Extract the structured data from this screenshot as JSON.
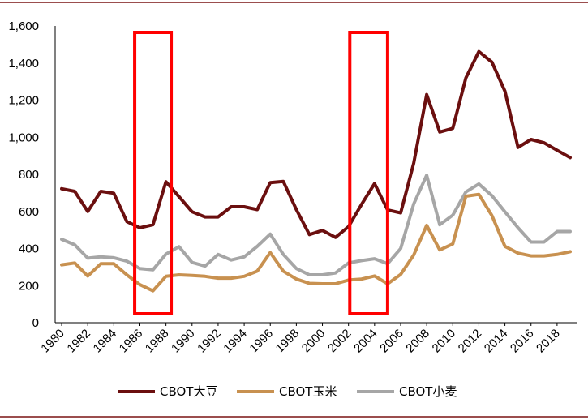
{
  "chart_data": {
    "type": "line",
    "title": "",
    "xlabel": "",
    "ylabel": "",
    "x": [
      1980,
      1981,
      1982,
      1983,
      1984,
      1985,
      1986,
      1987,
      1988,
      1989,
      1990,
      1991,
      1992,
      1993,
      1994,
      1995,
      1996,
      1997,
      1998,
      1999,
      2000,
      2001,
      2002,
      2003,
      2004,
      2005,
      2006,
      2007,
      2008,
      2009,
      2010,
      2011,
      2012,
      2013,
      2014,
      2015,
      2016,
      2017,
      2018,
      2019
    ],
    "x_tick_labels": [
      "1980",
      "1982",
      "1984",
      "1986",
      "1988",
      "1990",
      "1992",
      "1994",
      "1996",
      "1998",
      "2000",
      "2002",
      "2004",
      "2006",
      "2008",
      "2010",
      "2012",
      "2014",
      "2016",
      "2018"
    ],
    "y_tick_labels": [
      "0",
      "200",
      "400",
      "600",
      "800",
      "1,000",
      "1,200",
      "1,400",
      "1,600"
    ],
    "ylim": [
      0,
      1600
    ],
    "grid": false,
    "legend_position": "bottom",
    "series": [
      {
        "name": "CBOT大豆",
        "color": "#6b0f0f",
        "values": [
          722,
          708,
          600,
          708,
          698,
          545,
          512,
          528,
          760,
          680,
          598,
          570,
          570,
          625,
          625,
          610,
          755,
          762,
          610,
          475,
          498,
          460,
          518,
          638,
          750,
          608,
          592,
          860,
          1230,
          1028,
          1048,
          1320,
          1462,
          1405,
          1248,
          945,
          988,
          970,
          930,
          890
        ]
      },
      {
        "name": "CBOT玉米",
        "color": "#c89150",
        "values": [
          312,
          322,
          252,
          318,
          318,
          258,
          205,
          172,
          250,
          258,
          255,
          250,
          240,
          240,
          250,
          278,
          378,
          278,
          235,
          212,
          210,
          210,
          230,
          235,
          252,
          210,
          260,
          365,
          525,
          392,
          425,
          682,
          692,
          578,
          412,
          375,
          360,
          360,
          368,
          383
        ]
      },
      {
        "name": "CBOT小麦",
        "color": "#a6a6a6",
        "values": [
          450,
          420,
          348,
          355,
          350,
          332,
          292,
          285,
          370,
          410,
          325,
          305,
          368,
          338,
          355,
          412,
          478,
          368,
          292,
          258,
          258,
          268,
          322,
          335,
          345,
          318,
          400,
          640,
          795,
          528,
          580,
          705,
          748,
          685,
          598,
          512,
          435,
          435,
          492,
          492
        ]
      }
    ],
    "highlight_ranges": [
      [
        1985.6,
        1988.4
      ],
      [
        2002.1,
        2005.0
      ]
    ],
    "highlight_color": "#ff0000"
  }
}
